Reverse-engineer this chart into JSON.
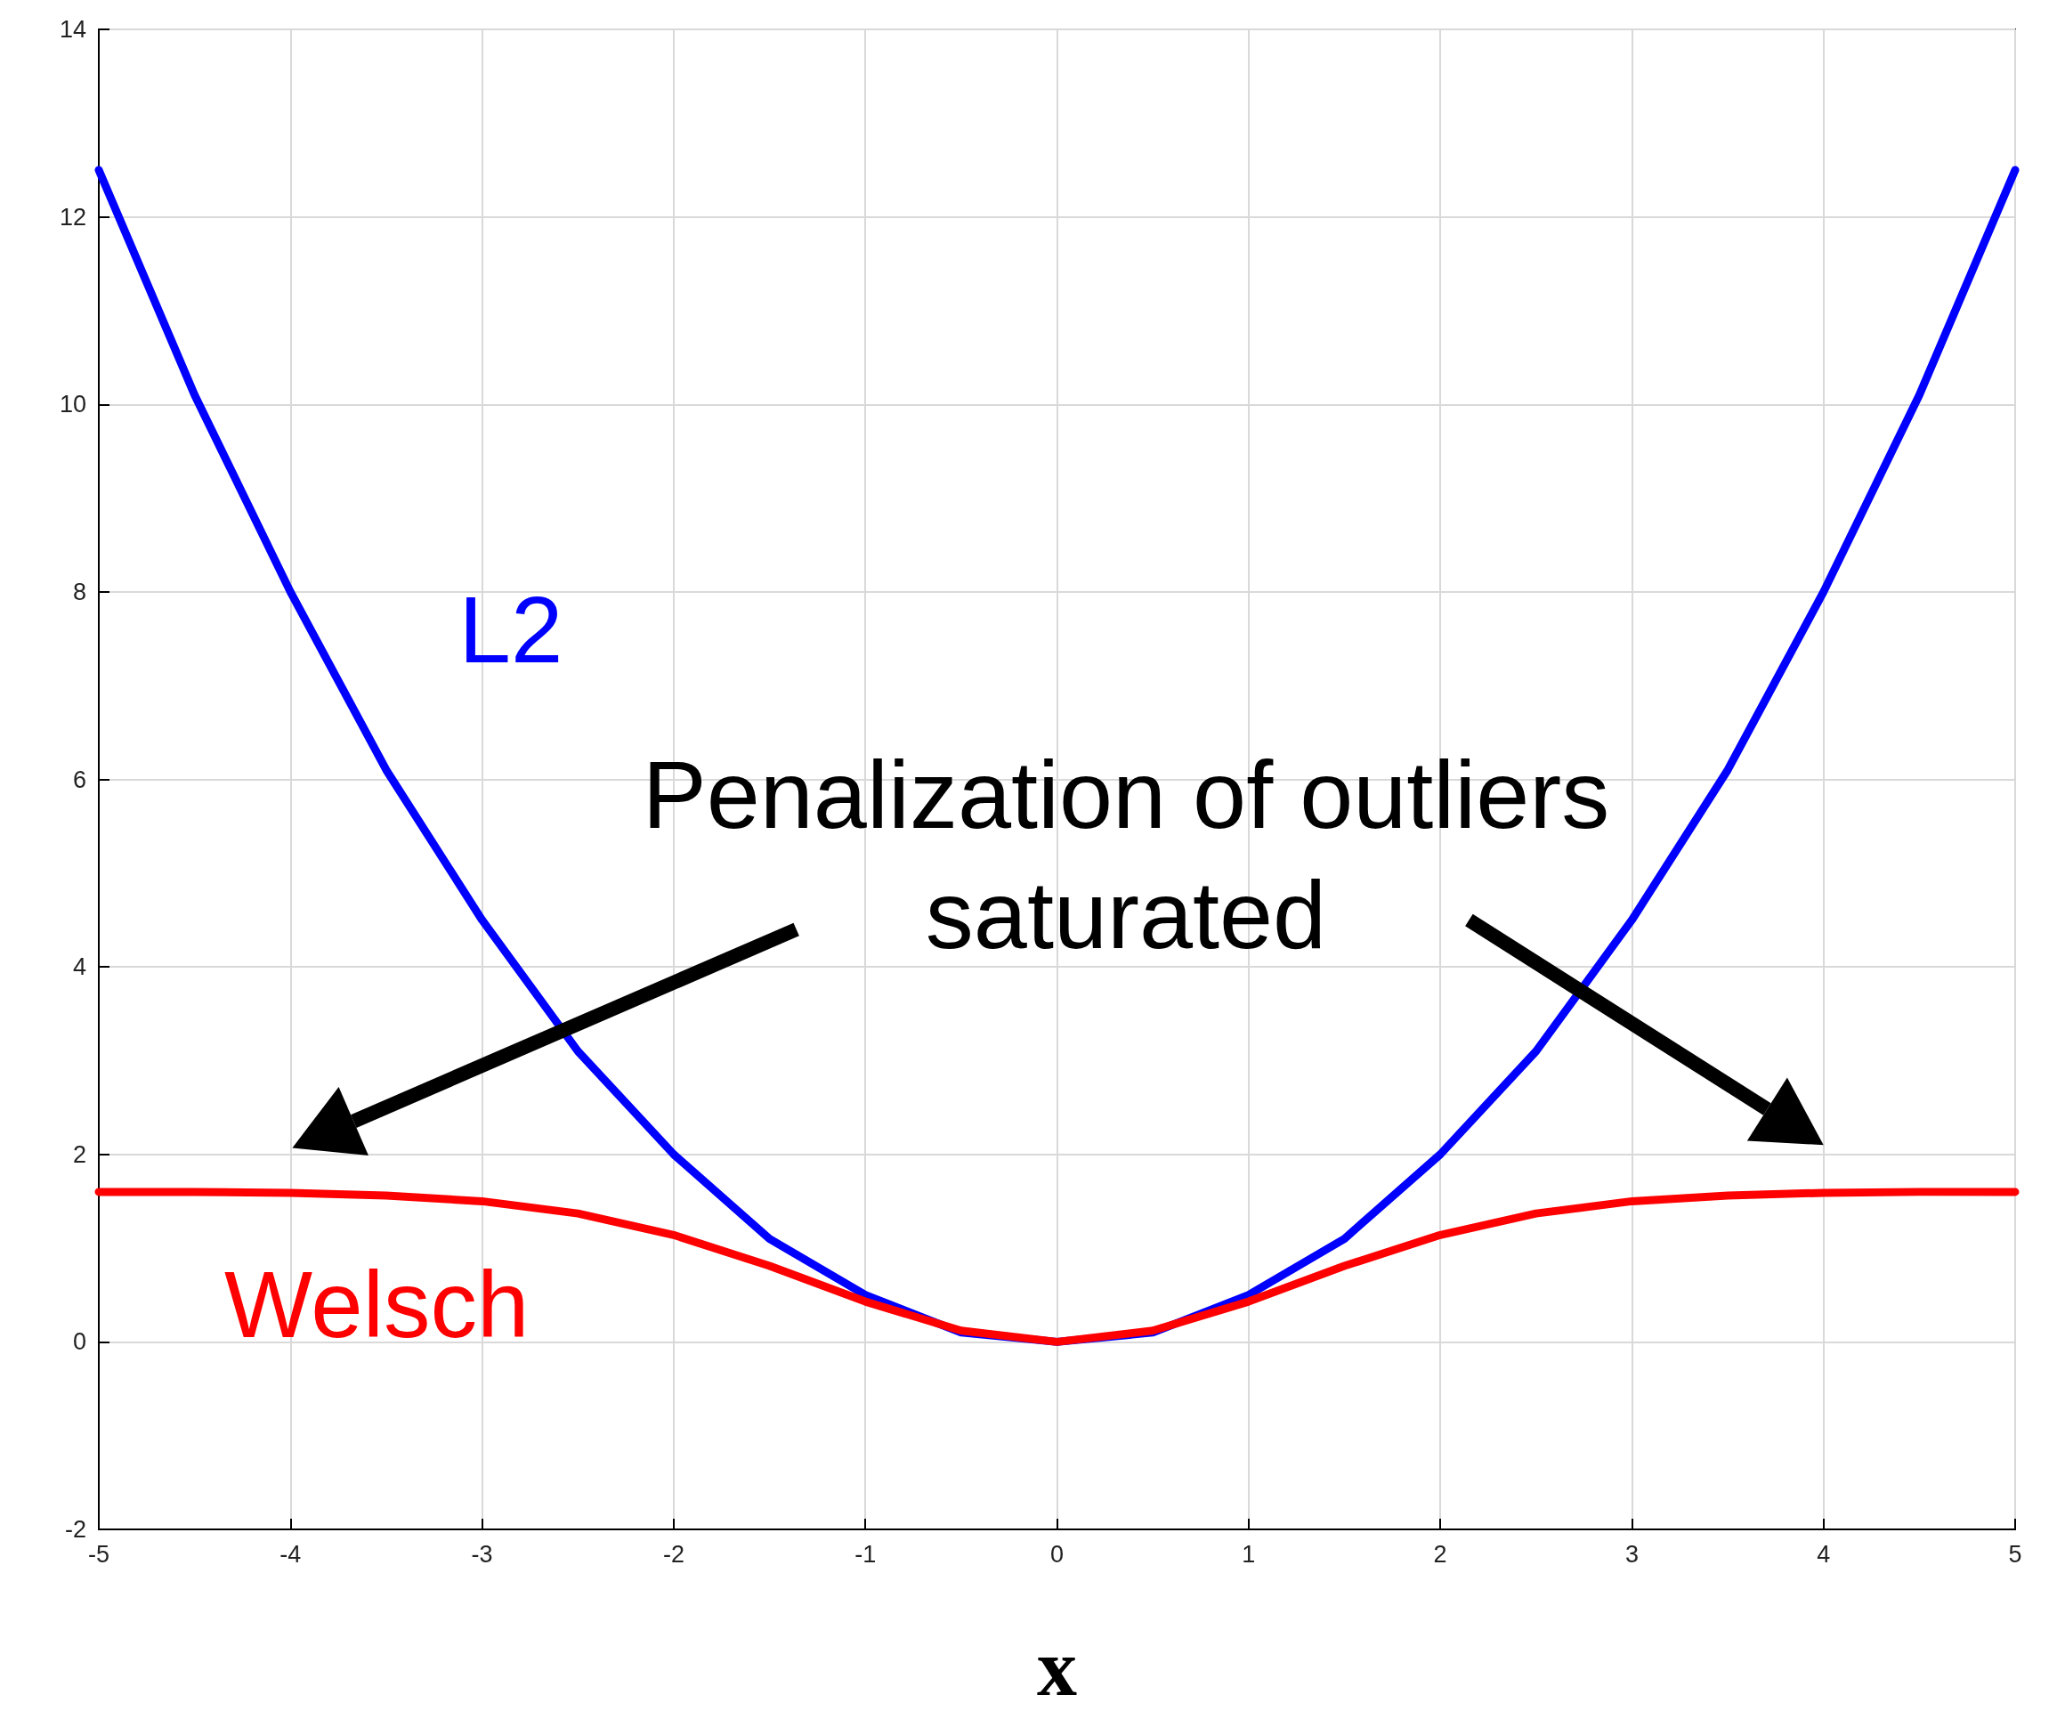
{
  "chart_data": {
    "type": "line",
    "xlabel": "x",
    "x": [
      -5,
      -4.5,
      -4,
      -3.5,
      -3,
      -2.5,
      -2,
      -1.5,
      -1,
      -0.5,
      0,
      0.5,
      1,
      1.5,
      2,
      2.5,
      3,
      3.5,
      4,
      4.5,
      5
    ],
    "series": [
      {
        "name": "L2",
        "color": "#0000ff",
        "values": [
          12.5,
          10.1,
          8,
          6.1,
          4.5,
          3.1,
          2,
          1.1,
          0.5,
          0.1,
          0,
          0.1,
          0.5,
          1.1,
          2,
          3.1,
          4.5,
          6.1,
          8,
          10.1,
          12.5
        ]
      },
      {
        "name": "Welsch",
        "color": "#ff0000",
        "values": [
          1.6,
          1.6,
          1.59,
          1.56,
          1.5,
          1.37,
          1.14,
          0.81,
          0.43,
          0.12,
          0,
          0.12,
          0.43,
          0.81,
          1.14,
          1.37,
          1.5,
          1.56,
          1.59,
          1.6,
          1.6
        ]
      }
    ],
    "annotations": [
      "Penalization of outliers\nsaturated"
    ],
    "xlim": [
      -5,
      5
    ],
    "xticks": [
      -5,
      -4,
      -3,
      -2,
      -1,
      0,
      1,
      2,
      3,
      4,
      5
    ],
    "ylim": [
      -2,
      14
    ],
    "yticks": [
      -2,
      0,
      2,
      4,
      6,
      8,
      10,
      12,
      14
    ],
    "grid": true,
    "legend": false,
    "marker": "none",
    "line_style": "solid"
  }
}
